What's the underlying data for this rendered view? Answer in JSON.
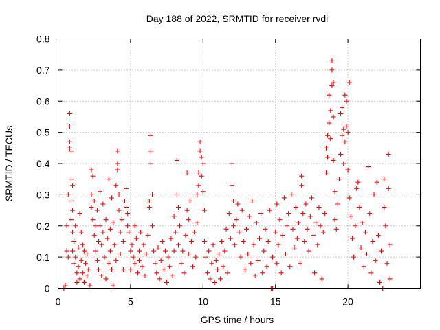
{
  "chart_data": {
    "type": "scatter",
    "title": "Day 188 of 2022, SRMTID for receiver rvdi",
    "xlabel": "GPS time / hours",
    "ylabel": "SRMTID / TECUs",
    "xlim": [
      0,
      25
    ],
    "ylim": [
      0,
      0.8
    ],
    "xticks": [
      0,
      5,
      10,
      15,
      20
    ],
    "xtick_labels": [
      "0",
      "5",
      "10",
      "15",
      "20"
    ],
    "yticks": [
      0,
      0.1,
      0.2,
      0.3,
      0.4,
      0.5,
      0.6,
      0.7,
      0.8
    ],
    "ytick_labels": [
      "0",
      "0.1",
      "0.2",
      "0.3",
      "0.4",
      "0.5",
      "0.6",
      "0.7",
      "0.8"
    ],
    "grid": true,
    "marker": "+",
    "series": [
      {
        "name": "SRMTID",
        "color": "#ff0000",
        "points": [
          [
            0.4,
            0.0
          ],
          [
            0.5,
            0.01
          ],
          [
            0.6,
            0.12
          ],
          [
            0.6,
            0.2
          ],
          [
            0.7,
            0.3
          ],
          [
            0.7,
            0.1
          ],
          [
            0.8,
            0.56
          ],
          [
            0.8,
            0.52
          ],
          [
            0.8,
            0.47
          ],
          [
            0.8,
            0.45
          ],
          [
            0.9,
            0.44
          ],
          [
            0.9,
            0.35
          ],
          [
            0.9,
            0.28
          ],
          [
            0.9,
            0.22
          ],
          [
            1.0,
            0.33
          ],
          [
            1.0,
            0.25
          ],
          [
            1.0,
            0.18
          ],
          [
            1.0,
            0.12
          ],
          [
            1.1,
            0.15
          ],
          [
            1.1,
            0.08
          ],
          [
            1.2,
            0.2
          ],
          [
            1.2,
            0.1
          ],
          [
            1.3,
            0.05
          ],
          [
            1.3,
            0.02
          ],
          [
            1.4,
            0.13
          ],
          [
            1.4,
            0.07
          ],
          [
            1.5,
            0.24
          ],
          [
            1.5,
            0.03
          ],
          [
            1.6,
            0.18
          ],
          [
            1.6,
            0.09
          ],
          [
            1.7,
            0.14
          ],
          [
            1.7,
            0.05
          ],
          [
            1.8,
            0.12
          ],
          [
            1.8,
            0.02
          ],
          [
            1.9,
            0.08
          ],
          [
            2.0,
            0.11
          ],
          [
            2.0,
            0.04
          ],
          [
            2.1,
            0.06
          ],
          [
            2.2,
            0.01
          ],
          [
            2.3,
            0.38
          ],
          [
            2.3,
            0.3
          ],
          [
            2.3,
            0.26
          ],
          [
            2.4,
            0.36
          ],
          [
            2.4,
            0.22
          ],
          [
            2.5,
            0.28
          ],
          [
            2.5,
            0.17
          ],
          [
            2.6,
            0.2
          ],
          [
            2.6,
            0.12
          ],
          [
            2.7,
            0.25
          ],
          [
            2.7,
            0.09
          ],
          [
            2.8,
            0.15
          ],
          [
            2.8,
            0.06
          ],
          [
            2.9,
            0.31
          ],
          [
            2.9,
            0.2
          ],
          [
            3.0,
            0.14
          ],
          [
            3.0,
            0.04
          ],
          [
            3.1,
            0.27
          ],
          [
            3.1,
            0.18
          ],
          [
            3.2,
            0.1
          ],
          [
            3.3,
            0.22
          ],
          [
            3.3,
            0.03
          ],
          [
            3.4,
            0.16
          ],
          [
            3.5,
            0.35
          ],
          [
            3.5,
            0.08
          ],
          [
            3.6,
            0.19
          ],
          [
            3.6,
            0.12
          ],
          [
            3.7,
            0.29
          ],
          [
            3.7,
            0.06
          ],
          [
            3.8,
            0.21
          ],
          [
            3.8,
            0.01
          ],
          [
            3.9,
            0.14
          ],
          [
            4.0,
            0.33
          ],
          [
            4.0,
            0.09
          ],
          [
            4.1,
            0.44
          ],
          [
            4.1,
            0.4
          ],
          [
            4.1,
            0.38
          ],
          [
            4.2,
            0.3
          ],
          [
            4.2,
            0.25
          ],
          [
            4.3,
            0.18
          ],
          [
            4.3,
            0.11
          ],
          [
            4.4,
            0.22
          ],
          [
            4.5,
            0.15
          ],
          [
            4.5,
            0.06
          ],
          [
            4.6,
            0.28
          ],
          [
            4.7,
            0.32
          ],
          [
            4.7,
            0.26
          ],
          [
            4.8,
            0.24
          ],
          [
            4.8,
            0.2
          ],
          [
            4.9,
            0.18
          ],
          [
            5.0,
            0.12
          ],
          [
            5.0,
            0.06
          ],
          [
            5.1,
            0.14
          ],
          [
            5.2,
            0.1
          ],
          [
            5.3,
            0.2
          ],
          [
            5.3,
            0.08
          ],
          [
            5.4,
            0.16
          ],
          [
            5.5,
            0.05
          ],
          [
            5.6,
            0.12
          ],
          [
            5.6,
            0.09
          ],
          [
            5.7,
            0.18
          ],
          [
            5.8,
            0.07
          ],
          [
            5.9,
            0.14
          ],
          [
            6.0,
            0.04
          ],
          [
            6.1,
            0.11
          ],
          [
            6.2,
            0.17
          ],
          [
            6.3,
            0.28
          ],
          [
            6.3,
            0.26
          ],
          [
            6.4,
            0.49
          ],
          [
            6.4,
            0.44
          ],
          [
            6.4,
            0.4
          ],
          [
            6.5,
            0.3
          ],
          [
            6.5,
            0.2
          ],
          [
            6.6,
            0.12
          ],
          [
            6.7,
            0.08
          ],
          [
            6.8,
            0.05
          ],
          [
            6.9,
            0.13
          ],
          [
            7.0,
            0.03
          ],
          [
            7.1,
            0.09
          ],
          [
            7.2,
            0.15
          ],
          [
            7.3,
            0.06
          ],
          [
            7.4,
            0.12
          ],
          [
            7.5,
            0.02
          ],
          [
            7.6,
            0.1
          ],
          [
            7.7,
            0.07
          ],
          [
            7.8,
            0.16
          ],
          [
            7.9,
            0.04
          ],
          [
            8.0,
            0.23
          ],
          [
            8.0,
            0.12
          ],
          [
            8.1,
            0.18
          ],
          [
            8.2,
            0.41
          ],
          [
            8.2,
            0.3
          ],
          [
            8.3,
            0.26
          ],
          [
            8.3,
            0.14
          ],
          [
            8.4,
            0.2
          ],
          [
            8.5,
            0.08
          ],
          [
            8.6,
            0.12
          ],
          [
            8.7,
            0.05
          ],
          [
            8.8,
            0.17
          ],
          [
            8.9,
            0.37
          ],
          [
            8.9,
            0.25
          ],
          [
            9.0,
            0.22
          ],
          [
            9.0,
            0.11
          ],
          [
            9.1,
            0.28
          ],
          [
            9.2,
            0.15
          ],
          [
            9.3,
            0.07
          ],
          [
            9.4,
            0.18
          ],
          [
            9.5,
            0.1
          ],
          [
            9.6,
            0.3
          ],
          [
            9.6,
            0.21
          ],
          [
            9.7,
            0.37
          ],
          [
            9.7,
            0.33
          ],
          [
            9.8,
            0.47
          ],
          [
            9.8,
            0.44
          ],
          [
            9.9,
            0.42
          ],
          [
            9.9,
            0.36
          ],
          [
            10.0,
            0.4
          ],
          [
            10.0,
            0.31
          ],
          [
            10.1,
            0.25
          ],
          [
            10.1,
            0.15
          ],
          [
            10.2,
            0.1
          ],
          [
            10.3,
            0.05
          ],
          [
            10.4,
            0.12
          ],
          [
            10.5,
            0.03
          ],
          [
            10.6,
            0.08
          ],
          [
            10.7,
            0.14
          ],
          [
            10.8,
            0.02
          ],
          [
            10.9,
            0.09
          ],
          [
            11.0,
            0.06
          ],
          [
            11.1,
            0.11
          ],
          [
            11.2,
            0.03
          ],
          [
            11.3,
            0.15
          ],
          [
            11.4,
            0.07
          ],
          [
            11.5,
            0.12
          ],
          [
            11.6,
            0.19
          ],
          [
            11.7,
            0.05
          ],
          [
            11.8,
            0.24
          ],
          [
            11.9,
            0.16
          ],
          [
            12.0,
            0.4
          ],
          [
            12.0,
            0.33
          ],
          [
            12.1,
            0.28
          ],
          [
            12.1,
            0.2
          ],
          [
            12.2,
            0.14
          ],
          [
            12.3,
            0.22
          ],
          [
            12.4,
            0.27
          ],
          [
            12.5,
            0.18
          ],
          [
            12.6,
            0.1
          ],
          [
            12.7,
            0.25
          ],
          [
            12.8,
            0.15
          ],
          [
            12.9,
            0.06
          ],
          [
            13.0,
            0.19
          ],
          [
            13.1,
            0.11
          ],
          [
            13.2,
            0.23
          ],
          [
            13.3,
            0.08
          ],
          [
            13.4,
            0.28
          ],
          [
            13.5,
            0.14
          ],
          [
            13.6,
            0.04
          ],
          [
            13.7,
            0.21
          ],
          [
            13.8,
            0.09
          ],
          [
            13.9,
            0.16
          ],
          [
            14.0,
            0.24
          ],
          [
            14.1,
            0.05
          ],
          [
            14.2,
            0.12
          ],
          [
            14.3,
            0.19
          ],
          [
            14.4,
            0.07
          ],
          [
            14.5,
            0.15
          ],
          [
            14.6,
            0.25
          ],
          [
            14.7,
            0.0
          ],
          [
            14.8,
            0.1
          ],
          [
            14.8,
            0.0
          ],
          [
            15.0,
            0.18
          ],
          [
            15.1,
            0.27
          ],
          [
            15.1,
            0.08
          ],
          [
            15.2,
            0.14
          ],
          [
            15.3,
            0.22
          ],
          [
            15.4,
            0.05
          ],
          [
            15.5,
            0.17
          ],
          [
            15.6,
            0.29
          ],
          [
            15.7,
            0.11
          ],
          [
            15.8,
            0.2
          ],
          [
            15.9,
            0.24
          ],
          [
            16.0,
            0.07
          ],
          [
            16.1,
            0.3
          ],
          [
            16.2,
            0.19
          ],
          [
            16.3,
            0.13
          ],
          [
            16.4,
            0.26
          ],
          [
            16.5,
            0.16
          ],
          [
            16.6,
            0.21
          ],
          [
            16.7,
            0.08
          ],
          [
            16.8,
            0.36
          ],
          [
            16.8,
            0.33
          ],
          [
            16.9,
            0.24
          ],
          [
            17.0,
            0.15
          ],
          [
            17.1,
            0.27
          ],
          [
            17.2,
            0.19
          ],
          [
            17.3,
            0.12
          ],
          [
            17.4,
            0.23
          ],
          [
            17.5,
            0.29
          ],
          [
            17.6,
            0.17
          ],
          [
            17.7,
            0.05
          ],
          [
            17.8,
            0.21
          ],
          [
            17.9,
            0.14
          ],
          [
            18.0,
            0.26
          ],
          [
            18.1,
            0.2
          ],
          [
            18.2,
            0.03
          ],
          [
            18.3,
            0.18
          ],
          [
            18.4,
            0.24
          ],
          [
            18.5,
            0.45
          ],
          [
            18.5,
            0.37
          ],
          [
            18.6,
            0.49
          ],
          [
            18.6,
            0.42
          ],
          [
            18.7,
            0.62
          ],
          [
            18.7,
            0.53
          ],
          [
            18.8,
            0.57
          ],
          [
            18.8,
            0.48
          ],
          [
            18.9,
            0.73
          ],
          [
            18.9,
            0.7
          ],
          [
            18.9,
            0.65
          ],
          [
            19.0,
            0.66
          ],
          [
            19.0,
            0.55
          ],
          [
            19.0,
            0.41
          ],
          [
            19.1,
            0.31
          ],
          [
            19.1,
            0.22
          ],
          [
            19.2,
            0.19
          ],
          [
            19.3,
            0.27
          ],
          [
            19.4,
            0.35
          ],
          [
            19.5,
            0.43
          ],
          [
            19.5,
            0.56
          ],
          [
            19.6,
            0.58
          ],
          [
            19.6,
            0.49
          ],
          [
            19.7,
            0.51
          ],
          [
            19.7,
            0.4
          ],
          [
            19.8,
            0.62
          ],
          [
            19.8,
            0.47
          ],
          [
            19.9,
            0.6
          ],
          [
            19.9,
            0.52
          ],
          [
            20.0,
            0.5
          ],
          [
            20.0,
            0.38
          ],
          [
            20.1,
            0.66
          ],
          [
            20.1,
            0.29
          ],
          [
            20.2,
            0.23
          ],
          [
            20.3,
            0.16
          ],
          [
            20.4,
            0.1
          ],
          [
            20.5,
            0.2
          ],
          [
            20.6,
            0.32
          ],
          [
            20.7,
            0.34
          ],
          [
            20.8,
            0.26
          ],
          [
            20.9,
            0.13
          ],
          [
            21.0,
            0.21
          ],
          [
            21.1,
            0.07
          ],
          [
            21.2,
            0.18
          ],
          [
            21.3,
            0.11
          ],
          [
            21.4,
            0.39
          ],
          [
            21.5,
            0.24
          ],
          [
            21.6,
            0.05
          ],
          [
            21.7,
            0.15
          ],
          [
            21.8,
            0.3
          ],
          [
            21.9,
            0.09
          ],
          [
            22.0,
            0.34
          ],
          [
            22.1,
            0.17
          ],
          [
            22.2,
            0.02
          ],
          [
            22.3,
            0.12
          ],
          [
            22.4,
            0.0
          ],
          [
            22.5,
            0.35
          ],
          [
            22.5,
            0.26
          ],
          [
            22.6,
            0.2
          ],
          [
            22.7,
            0.08
          ],
          [
            22.8,
            0.43
          ],
          [
            22.8,
            0.32
          ],
          [
            22.9,
            0.14
          ],
          [
            22.9,
            0.03
          ]
        ]
      }
    ]
  }
}
